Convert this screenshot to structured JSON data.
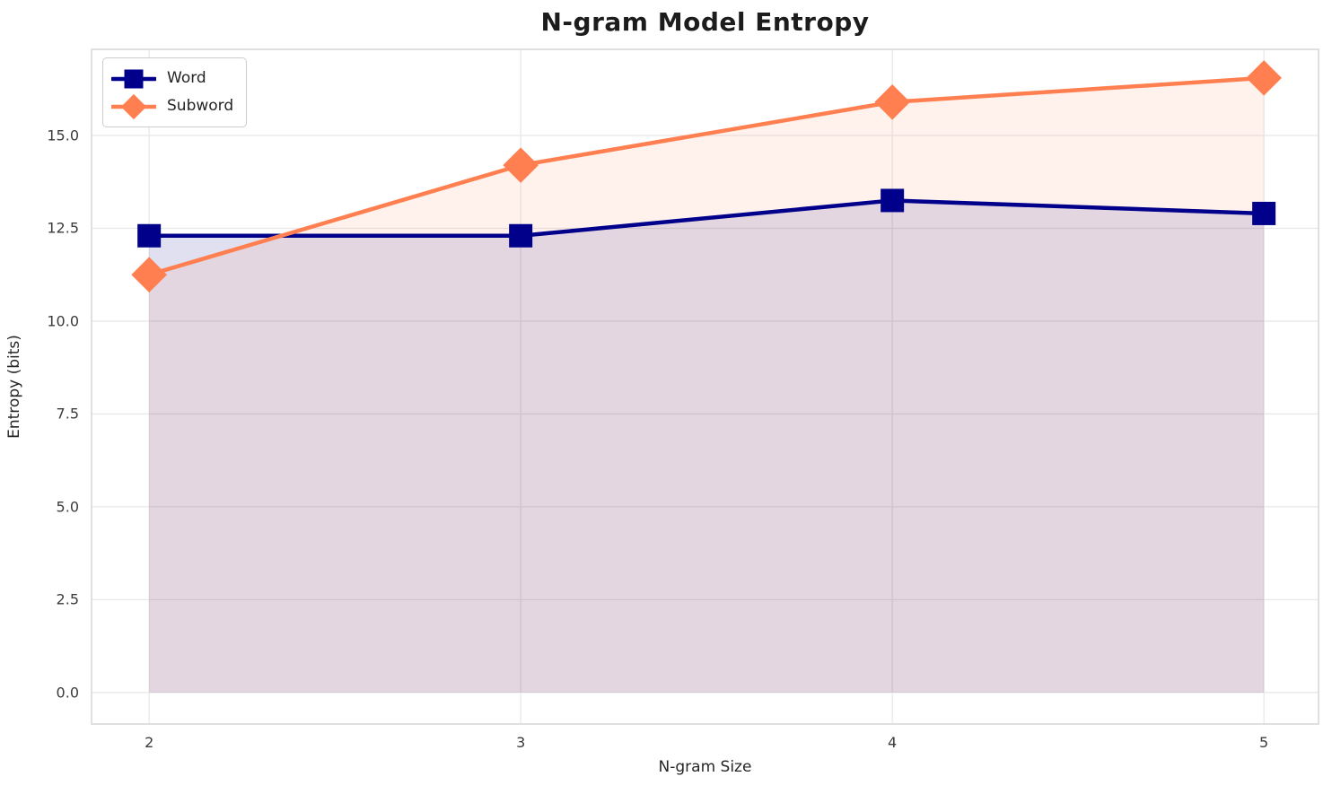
{
  "chart_data": {
    "type": "line",
    "title": "N-gram Model Entropy",
    "xlabel": "N-gram Size",
    "ylabel": "Entropy (bits)",
    "x": [
      2,
      3,
      4,
      5
    ],
    "series": [
      {
        "name": "Word",
        "color": "#00008b",
        "marker": "square",
        "values": [
          12.3,
          12.3,
          13.25,
          12.9
        ],
        "fill_alpha": 0.12,
        "fill_to_zero": true
      },
      {
        "name": "Subword",
        "color": "#ff7f50",
        "marker": "diamond",
        "values": [
          11.25,
          14.2,
          15.9,
          16.55
        ],
        "fill_alpha": 0.1,
        "fill_to_zero": true
      }
    ],
    "xticks": {
      "values": [
        2,
        3,
        4,
        5
      ],
      "labels": [
        "2",
        "3",
        "4",
        "5"
      ]
    },
    "yticks": {
      "values": [
        0,
        2.5,
        5,
        7.5,
        10,
        12.5,
        15
      ],
      "labels": [
        "0.0",
        "2.5",
        "5.0",
        "7.5",
        "10.0",
        "12.5",
        "15.0"
      ]
    },
    "xlim": [
      1.845,
      5.147
    ],
    "ylim": [
      -0.85,
      17.32
    ],
    "grid": true,
    "legend_position": "upper-left"
  },
  "colors": {
    "background": "#ffffff",
    "grid": "#e8e8e8",
    "plot_border": "#d5d5d5",
    "title_text": "#1c1c1c",
    "tick_text": "#3b3b3b",
    "axis_label_text": "#262626"
  }
}
